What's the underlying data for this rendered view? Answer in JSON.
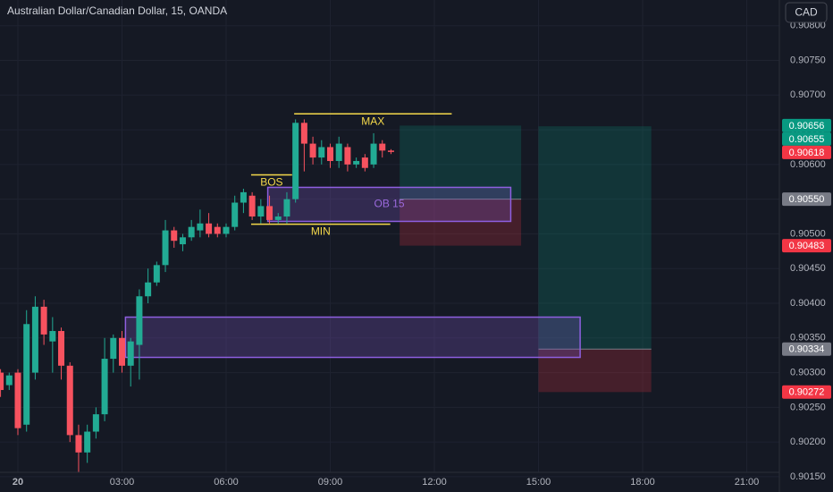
{
  "chart_data": {
    "type": "candlestick",
    "title": "Australian Dollar/Canadian Dollar, 15, OANDA",
    "currency": "CAD",
    "up_color": "#22ab94",
    "down_color": "#f7525f",
    "grid": true,
    "x": [
      -0.5,
      -0.25,
      0,
      0.25,
      0.5,
      0.75,
      1,
      1.25,
      1.5,
      1.75,
      2,
      2.25,
      2.5,
      2.75,
      3,
      3.25,
      3.5,
      3.75,
      4,
      4.25,
      4.5,
      4.75,
      5,
      5.25,
      5.5,
      5.75,
      6,
      6.25,
      6.5,
      6.75,
      7,
      7.25,
      7.5,
      7.75,
      8,
      8.25,
      8.5,
      8.75,
      9,
      9.25,
      9.5,
      9.75,
      10,
      10.25,
      10.5,
      10.75
    ],
    "open": [
      0.903,
      0.90282,
      0.903,
      0.90225,
      0.903,
      0.90395,
      0.90345,
      0.9036,
      0.9031,
      0.9021,
      0.90185,
      0.90215,
      0.9024,
      0.9032,
      0.9035,
      0.9031,
      0.9034,
      0.9041,
      0.9043,
      0.90455,
      0.90505,
      0.90485,
      0.90495,
      0.90505,
      0.90515,
      0.9051,
      0.905,
      0.9051,
      0.90545,
      0.90555,
      0.90525,
      0.9054,
      0.9052,
      0.90525,
      0.9055,
      0.9066,
      0.9063,
      0.9061,
      0.90625,
      0.90605,
      0.90625,
      0.906,
      0.9061,
      0.906,
      0.9063,
      0.9062
    ],
    "high": [
      0.90305,
      0.903,
      0.90305,
      0.9039,
      0.9041,
      0.90405,
      0.9038,
      0.90365,
      0.90315,
      0.90225,
      0.90225,
      0.9025,
      0.9035,
      0.90355,
      0.9036,
      0.9035,
      0.9042,
      0.9045,
      0.9046,
      0.9052,
      0.9051,
      0.905,
      0.9052,
      0.90535,
      0.9053,
      0.90515,
      0.90515,
      0.90555,
      0.90565,
      0.9056,
      0.9055,
      0.90555,
      0.9053,
      0.9056,
      0.90665,
      0.90665,
      0.9064,
      0.90635,
      0.9063,
      0.9064,
      0.9063,
      0.9061,
      0.90615,
      0.90645,
      0.90635,
      0.90622
    ],
    "low": [
      0.90265,
      0.90275,
      0.9021,
      0.90215,
      0.9029,
      0.9034,
      0.903,
      0.9029,
      0.902,
      0.9013,
      0.9017,
      0.90205,
      0.9023,
      0.903,
      0.903,
      0.9028,
      0.9029,
      0.904,
      0.90425,
      0.90445,
      0.9048,
      0.90475,
      0.9049,
      0.90495,
      0.90495,
      0.90495,
      0.90495,
      0.90505,
      0.9053,
      0.9052,
      0.90515,
      0.90515,
      0.90515,
      0.90515,
      0.90545,
      0.9059,
      0.906,
      0.906,
      0.90595,
      0.90595,
      0.9059,
      0.90595,
      0.9059,
      0.90595,
      0.9061,
      0.90615
    ],
    "close": [
      0.90275,
      0.90296,
      0.9022,
      0.9037,
      0.90395,
      0.90355,
      0.9036,
      0.9031,
      0.9021,
      0.90185,
      0.90215,
      0.9024,
      0.9032,
      0.9035,
      0.9031,
      0.90345,
      0.9041,
      0.9043,
      0.90455,
      0.90505,
      0.9049,
      0.90495,
      0.9051,
      0.90515,
      0.905,
      0.905,
      0.9051,
      0.90545,
      0.9056,
      0.90525,
      0.9054,
      0.9052,
      0.90525,
      0.9055,
      0.9066,
      0.9063,
      0.9061,
      0.90625,
      0.90605,
      0.9063,
      0.906,
      0.90605,
      0.90595,
      0.9063,
      0.9062,
      0.90618
    ],
    "xlim": [
      -0.515,
      21.94
    ],
    "xticks": [
      {
        "value": 0,
        "label": "20"
      },
      {
        "value": 3,
        "label": "03:00"
      },
      {
        "value": 6,
        "label": "06:00"
      },
      {
        "value": 9,
        "label": "09:00"
      },
      {
        "value": 12,
        "label": "12:00"
      },
      {
        "value": 15,
        "label": "15:00"
      },
      {
        "value": 18,
        "label": "18:00"
      },
      {
        "value": 21,
        "label": "21:00"
      }
    ],
    "ylim": [
      0.90128,
      0.90837
    ],
    "yticks": [
      {
        "value": 0.908,
        "label": "0.90800"
      },
      {
        "value": 0.9075,
        "label": "0.90750"
      },
      {
        "value": 0.907,
        "label": "0.90700"
      },
      {
        "value": 0.9065,
        "label": "0.90650"
      },
      {
        "value": 0.906,
        "label": "0.90600"
      },
      {
        "value": 0.9055,
        "label": "0.90550"
      },
      {
        "value": 0.905,
        "label": "0.90500"
      },
      {
        "value": 0.9045,
        "label": "0.90450"
      },
      {
        "value": 0.904,
        "label": "0.90400"
      },
      {
        "value": 0.9035,
        "label": "0.90350"
      },
      {
        "value": 0.903,
        "label": "0.90300"
      },
      {
        "value": 0.9025,
        "label": "0.90250"
      },
      {
        "value": 0.902,
        "label": "0.90200"
      },
      {
        "value": 0.9015,
        "label": "0.90150"
      }
    ],
    "levels": [
      {
        "label": "MAX",
        "value": 0.90673,
        "x": [
          7.96,
          12.5
        ]
      },
      {
        "label": "BOS",
        "value": 0.90585,
        "x": [
          6.72,
          7.9
        ]
      },
      {
        "label": "MIN",
        "value": 0.90514,
        "x": [
          6.72,
          10.73
        ]
      }
    ],
    "order_blocks": [
      {
        "label": "OB 15",
        "top": 0.90567,
        "bottom": 0.90518,
        "x": [
          7.2,
          14.2
        ]
      },
      {
        "top": 0.9038,
        "bottom": 0.90322,
        "x": [
          3.1,
          16.2
        ]
      }
    ],
    "positions": [
      {
        "target": 0.90656,
        "entry": 0.9055,
        "stop": 0.90483,
        "x": [
          11,
          14.5
        ]
      },
      {
        "target": 0.90655,
        "entry": 0.90334,
        "stop": 0.90272,
        "x": [
          15,
          18.25
        ]
      }
    ],
    "price_labels": [
      {
        "value": 0.90656,
        "label": "0.90656",
        "color": "#089981"
      },
      {
        "value": 0.90655,
        "label": "0.90655",
        "color": "#089981"
      },
      {
        "value": 0.90618,
        "label": "0.90618",
        "color": "#f23645"
      },
      {
        "value": 0.9055,
        "label": "0.90550",
        "color": "#787b86"
      },
      {
        "value": 0.90483,
        "label": "0.90483",
        "color": "#f23645"
      },
      {
        "value": 0.90334,
        "label": "0.90334",
        "color": "#787b86"
      },
      {
        "value": 0.90272,
        "label": "0.90272",
        "color": "#f23645"
      }
    ]
  }
}
